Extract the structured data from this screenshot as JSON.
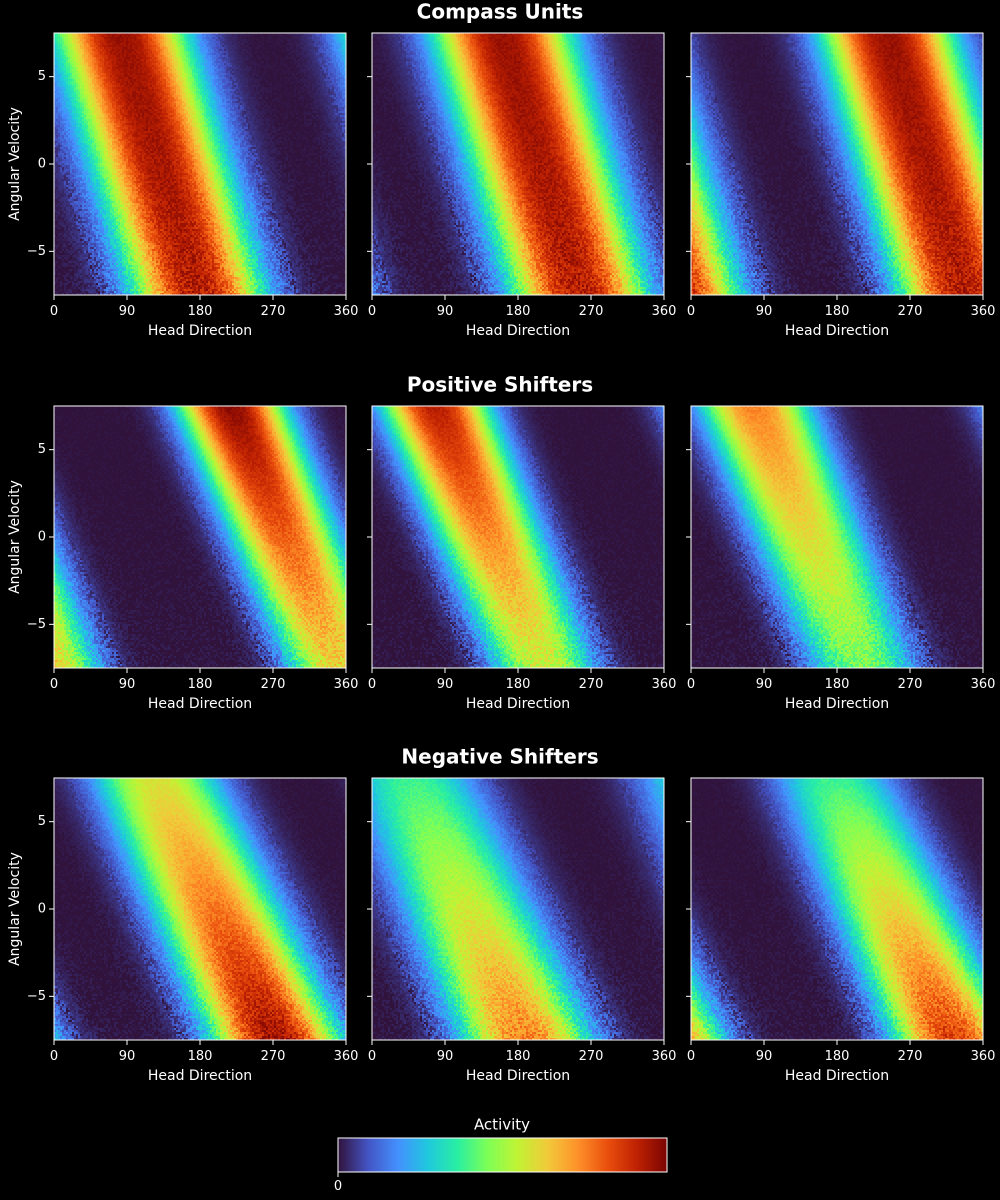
{
  "figure": {
    "background": "#000000",
    "colormap": "turbo",
    "colormap_stops": [
      "#30123b",
      "#4454c4",
      "#4490fe",
      "#1fc8de",
      "#29efa2",
      "#7dff56",
      "#c1f334",
      "#f1ca3a",
      "#fe922a",
      "#ea4f0d",
      "#be2102",
      "#7a0403"
    ],
    "colorbar": {
      "title": "Activity",
      "tick_label": "0"
    }
  },
  "chart_data": [
    {
      "type": "heatmap",
      "section": "Compass Units",
      "row": 0,
      "col": 0,
      "xlabel": "Head Direction",
      "ylabel": "Angular Velocity",
      "xlim": [
        0,
        360
      ],
      "ylim": [
        -7.5,
        7.5
      ],
      "xticks": [
        "0",
        "90",
        "180",
        "270",
        "360"
      ],
      "yticks": [
        "-5",
        "0",
        "5"
      ],
      "pattern": {
        "center": 130,
        "slope": -6.5,
        "width": 60,
        "vmin": 0.92,
        "vmax": 0.96,
        "floor": 0.0
      }
    },
    {
      "type": "heatmap",
      "section": "Compass Units",
      "row": 0,
      "col": 1,
      "xlabel": "Head Direction",
      "ylabel": "",
      "xlim": [
        0,
        360
      ],
      "ylim": [
        -7.5,
        7.5
      ],
      "xticks": [
        "0",
        "90",
        "180",
        "270",
        "360"
      ],
      "yticks": [
        "-5",
        "0",
        "5"
      ],
      "pattern": {
        "center": 208,
        "slope": -6.5,
        "width": 62,
        "vmin": 0.92,
        "vmax": 0.96,
        "floor": 0.0
      }
    },
    {
      "type": "heatmap",
      "section": "Compass Units",
      "row": 0,
      "col": 2,
      "xlabel": "Head Direction",
      "ylabel": "",
      "xlim": [
        0,
        360
      ],
      "ylim": [
        -7.5,
        7.5
      ],
      "xticks": [
        "0",
        "90",
        "180",
        "270",
        "360"
      ],
      "yticks": [
        "-5",
        "0",
        "5"
      ],
      "pattern": {
        "center": 290,
        "slope": -6.5,
        "width": 60,
        "vmin": 0.92,
        "vmax": 0.96,
        "floor": 0.0
      }
    },
    {
      "type": "heatmap",
      "section": "Positive Shifters",
      "row": 1,
      "col": 0,
      "xlabel": "Head Direction",
      "ylabel": "Angular Velocity",
      "xlim": [
        0,
        360
      ],
      "ylim": [
        -7.5,
        7.5
      ],
      "xticks": [
        "0",
        "90",
        "180",
        "270",
        "360"
      ],
      "yticks": [
        "-5",
        "0",
        "5"
      ],
      "pattern": {
        "center": 285,
        "slope": -9.0,
        "width": 48,
        "vmin": 0.62,
        "vmax": 0.98,
        "floor": 0.0
      }
    },
    {
      "type": "heatmap",
      "section": "Positive Shifters",
      "row": 1,
      "col": 1,
      "xlabel": "Head Direction",
      "ylabel": "",
      "xlim": [
        0,
        360
      ],
      "ylim": [
        -7.5,
        7.5
      ],
      "xticks": [
        "0",
        "90",
        "180",
        "270",
        "360"
      ],
      "yticks": [
        "-5",
        "0",
        "5"
      ],
      "pattern": {
        "center": 145,
        "slope": -9.0,
        "width": 48,
        "vmin": 0.55,
        "vmax": 0.92,
        "floor": 0.0
      }
    },
    {
      "type": "heatmap",
      "section": "Positive Shifters",
      "row": 1,
      "col": 2,
      "xlabel": "Head Direction",
      "ylabel": "",
      "xlim": [
        0,
        360
      ],
      "ylim": [
        -7.5,
        7.5
      ],
      "xticks": [
        "0",
        "90",
        "180",
        "270",
        "360"
      ],
      "yticks": [
        "-5",
        "0",
        "5"
      ],
      "pattern": {
        "center": 145,
        "slope": -9.0,
        "width": 50,
        "vmin": 0.45,
        "vmax": 0.75,
        "floor": 0.0
      }
    },
    {
      "type": "heatmap",
      "section": "Negative Shifters",
      "row": 2,
      "col": 0,
      "xlabel": "Head Direction",
      "ylabel": "Angular Velocity",
      "xlim": [
        0,
        360
      ],
      "ylim": [
        -7.5,
        7.5
      ],
      "xticks": [
        "0",
        "90",
        "180",
        "270",
        "360"
      ],
      "yticks": [
        "-5",
        "0",
        "5"
      ],
      "pattern": {
        "center": 200,
        "slope": -10.0,
        "width": 58,
        "vmin": 0.95,
        "vmax": 0.58,
        "floor": 0.0
      }
    },
    {
      "type": "heatmap",
      "section": "Negative Shifters",
      "row": 2,
      "col": 1,
      "xlabel": "Head Direction",
      "ylabel": "",
      "xlim": [
        0,
        360
      ],
      "ylim": [
        -7.5,
        7.5
      ],
      "xticks": [
        "0",
        "90",
        "180",
        "270",
        "360"
      ],
      "yticks": [
        "-5",
        "0",
        "5"
      ],
      "pattern": {
        "center": 120,
        "slope": -9.5,
        "width": 60,
        "vmin": 0.75,
        "vmax": 0.38,
        "floor": 0.0
      }
    },
    {
      "type": "heatmap",
      "section": "Negative Shifters",
      "row": 2,
      "col": 2,
      "xlabel": "Head Direction",
      "ylabel": "",
      "xlim": [
        0,
        360
      ],
      "ylim": [
        -7.5,
        7.5
      ],
      "xticks": [
        "0",
        "90",
        "180",
        "270",
        "360"
      ],
      "yticks": [
        "-5",
        "0",
        "5"
      ],
      "pattern": {
        "center": 250,
        "slope": -10.0,
        "width": 55,
        "vmin": 0.85,
        "vmax": 0.38,
        "floor": 0.0
      }
    }
  ]
}
